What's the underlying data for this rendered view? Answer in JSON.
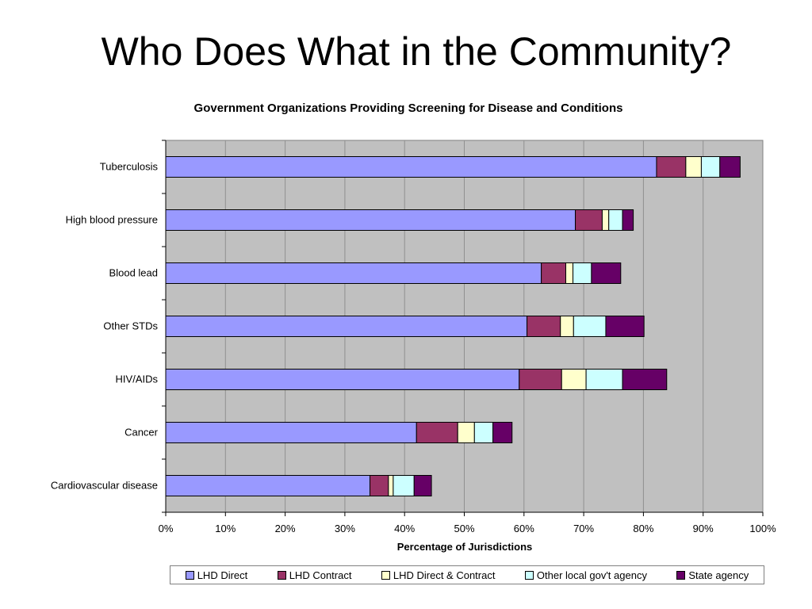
{
  "slide": {
    "title": "Who Does What in the Community?"
  },
  "chart_data": {
    "type": "bar",
    "orientation": "horizontal",
    "stacked": true,
    "title": "Government Organizations Providing Screening for Disease and Conditions",
    "xlabel": "Percentage of Jurisdictions",
    "ylabel": "",
    "xlim": [
      0,
      100
    ],
    "x_ticks": [
      "0%",
      "10%",
      "20%",
      "30%",
      "40%",
      "50%",
      "60%",
      "70%",
      "80%",
      "90%",
      "100%"
    ],
    "grid": true,
    "legend_position": "bottom",
    "categories": [
      "Tuberculosis",
      "High blood pressure",
      "Blood lead",
      "Other STDs",
      "HIV/AIDs",
      "Cancer",
      "Cardiovascular disease"
    ],
    "series": [
      {
        "name": "LHD Direct",
        "color": "#9999ff",
        "values": [
          82.2,
          68.6,
          62.9,
          60.5,
          59.2,
          42.0,
          34.2
        ]
      },
      {
        "name": "LHD Contract",
        "color": "#993366",
        "values": [
          4.9,
          4.5,
          4.1,
          5.6,
          7.1,
          6.9,
          3.1
        ]
      },
      {
        "name": "LHD Direct & Contract",
        "color": "#ffffcc",
        "values": [
          2.6,
          1.1,
          1.2,
          2.2,
          4.1,
          2.8,
          0.8
        ]
      },
      {
        "name": "Other local gov't agency",
        "color": "#ccffff",
        "values": [
          3.1,
          2.3,
          3.1,
          5.4,
          6.1,
          3.1,
          3.5
        ]
      },
      {
        "name": "State agency",
        "color": "#660066",
        "values": [
          3.4,
          1.8,
          4.9,
          6.4,
          7.4,
          3.2,
          2.9
        ]
      }
    ]
  }
}
